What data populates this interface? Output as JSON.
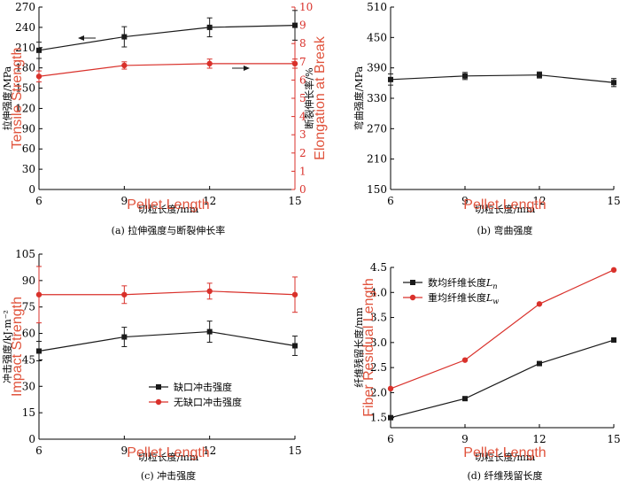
{
  "colors": {
    "black_series": "#1a1a1a",
    "red_series": "#d9312b",
    "overlay_text": "#e0533c"
  },
  "chart_data": [
    {
      "id": "a",
      "type": "line",
      "caption": "(a) 拉伸强度与断裂伸长率",
      "xlabel": "切粒长度/mm",
      "ylabel": "拉伸强度/MPa",
      "y2label": "断裂伸长率/%",
      "overlay_xlabel": "Pellet Length",
      "overlay_ylabel": "Tensile Strength",
      "overlay_y2label": "Elongation at Break",
      "x": [
        6,
        9,
        12,
        15
      ],
      "xlim": [
        6,
        15
      ],
      "ylim": [
        0,
        270
      ],
      "yticks": [
        0,
        30,
        60,
        90,
        120,
        150,
        180,
        210,
        240,
        270
      ],
      "ytick_labels": [
        "0",
        "30",
        "60",
        "90",
        "120",
        "150",
        "180",
        "210",
        "240",
        "270"
      ],
      "y2lim": [
        0,
        10
      ],
      "y2ticks": [
        0,
        1,
        2,
        3,
        4,
        5,
        6,
        7,
        8,
        9,
        10
      ],
      "series": [
        {
          "axis": "left",
          "color": "black",
          "marker": "square",
          "values": [
            206,
            226,
            240,
            243
          ],
          "errors": [
            12,
            15,
            14,
            22
          ]
        },
        {
          "axis": "right",
          "color": "red",
          "marker": "circle",
          "values": [
            6.2,
            6.8,
            6.9,
            6.9
          ],
          "errors": [
            0.3,
            0.2,
            0.25,
            0.25
          ]
        }
      ]
    },
    {
      "id": "b",
      "type": "line",
      "caption": "(b) 弯曲强度",
      "xlabel": "切粒长度/mm",
      "ylabel": "弯曲强度/MPa",
      "overlay_xlabel": "Pellet Length",
      "x": [
        6,
        9,
        12,
        15
      ],
      "xlim": [
        6,
        15
      ],
      "ylim": [
        150,
        510
      ],
      "yticks": [
        150,
        210,
        270,
        330,
        390,
        450,
        510
      ],
      "series": [
        {
          "color": "black",
          "marker": "square",
          "values": [
            367,
            374,
            376,
            361
          ],
          "errors": [
            11,
            7,
            6,
            8
          ]
        }
      ]
    },
    {
      "id": "c",
      "type": "line",
      "caption": "(c) 冲击强度",
      "xlabel": "切粒长度/mm",
      "ylabel": "冲击强度/kJ·m⁻²",
      "overlay_xlabel": "Pellet Length",
      "overlay_ylabel": "Impact Strength",
      "x": [
        6,
        9,
        12,
        15
      ],
      "xlim": [
        6,
        15
      ],
      "ylim": [
        0,
        105
      ],
      "yticks": [
        0,
        15,
        30,
        45,
        60,
        75,
        90,
        105
      ],
      "legend_position": "lower-right",
      "series": [
        {
          "name": "缺口冲击强度",
          "color": "black",
          "marker": "square",
          "values": [
            50,
            58,
            61,
            53
          ],
          "errors": [
            5.5,
            5.5,
            6,
            5.5
          ]
        },
        {
          "name": "无缺口冲击强度",
          "color": "red",
          "marker": "circle",
          "values": [
            82,
            82,
            84,
            82
          ],
          "errors": [
            16,
            5,
            4.5,
            10
          ]
        }
      ]
    },
    {
      "id": "d",
      "type": "line",
      "caption": "(d) 纤维残留长度",
      "xlabel": "切粒长度/mm",
      "ylabel": "纤维残留长度/mm",
      "overlay_xlabel": "Pellet Length",
      "overlay_ylabel": "Fiber Residual Length",
      "x": [
        6,
        9,
        12,
        15
      ],
      "xlim": [
        6,
        15
      ],
      "ylim": [
        1.3,
        4.5
      ],
      "yticks": [
        1.5,
        2.0,
        2.5,
        3.0,
        3.5,
        4.0,
        4.5
      ],
      "ytick_labels": [
        "1.5",
        "2.0",
        "2.5",
        "3.0",
        "3.5",
        "4.0",
        "4.5"
      ],
      "legend_position": "upper-left",
      "series": [
        {
          "name": "数均纤维长度",
          "name_sub": "n",
          "color": "black",
          "marker": "square",
          "values": [
            1.5,
            1.88,
            2.58,
            3.05
          ],
          "errors": [
            0,
            0,
            0,
            0
          ]
        },
        {
          "name": "重均纤维长度",
          "name_sub": "w",
          "color": "red",
          "marker": "circle",
          "values": [
            2.08,
            2.65,
            3.77,
            4.45
          ],
          "errors": [
            0,
            0,
            0,
            0
          ]
        }
      ]
    }
  ]
}
